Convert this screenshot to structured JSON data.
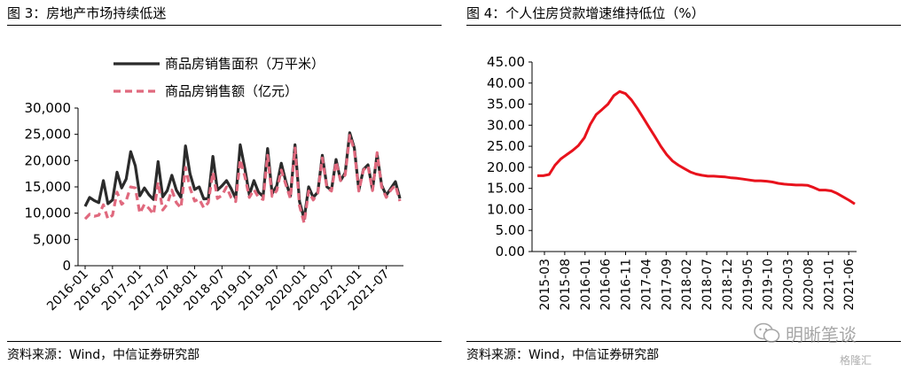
{
  "left": {
    "title": "图 3：房地产市场持续低迷",
    "source": "资料来源：Wind，中信证券研究部"
  },
  "right": {
    "title": "图 4：个人住房贷款增速维持低位（%）",
    "source": "资料来源：Wind，中信证券研究部"
  },
  "watermark": {
    "text": "明晰笔谈",
    "icon": "wechat-icon",
    "sub": "格隆汇"
  },
  "colors": {
    "area": "#2b2b2b",
    "sales": "#e0697e",
    "loan": "#e8121c"
  },
  "chart_data": [
    {
      "type": "line",
      "title": "",
      "xlabel": "",
      "ylabel": "",
      "ylim": [
        0,
        30000
      ],
      "yticks": [
        "0",
        "5,000",
        "10,000",
        "15,000",
        "20,000",
        "25,000",
        "30,000"
      ],
      "xtick_labels": [
        "2016-01",
        "2016-07",
        "2017-01",
        "2017-07",
        "2018-01",
        "2018-07",
        "2019-01",
        "2019-07",
        "2020-01",
        "2020-07",
        "2021-01",
        "2021-07"
      ],
      "legend": [
        "商品房销售面积（万平米）",
        "商品房销售额（亿元）"
      ],
      "legend_position": "top",
      "series": [
        {
          "name": "商品房销售面积（万平米）",
          "style": "solid",
          "values": [
            11300,
            13000,
            12400,
            12000,
            16200,
            11800,
            12500,
            17800,
            14800,
            16500,
            21700,
            19000,
            13300,
            14800,
            13500,
            12600,
            19800,
            13100,
            14300,
            17200,
            14400,
            13000,
            22800,
            17500,
            14500,
            15000,
            12700,
            12800,
            20800,
            14400,
            15200,
            16200,
            14700,
            12800,
            23000,
            18500,
            13500,
            16200,
            14000,
            13200,
            22300,
            13700,
            15200,
            19500,
            16000,
            13200,
            23000,
            12200,
            8900,
            15000,
            13000,
            14000,
            21000,
            15000,
            14400,
            20200,
            16200,
            17700,
            25300,
            22400,
            14400,
            18300,
            19200,
            14500,
            21200,
            15300,
            13400,
            14700,
            16000,
            12800
          ]
        },
        {
          "name": "商品房销售额（亿元）",
          "style": "dashed",
          "values": [
            8900,
            9800,
            9400,
            9600,
            11600,
            8900,
            9600,
            14000,
            11700,
            12400,
            15000,
            14800,
            10000,
            11700,
            10900,
            9800,
            15900,
            10600,
            11700,
            14400,
            12000,
            11000,
            18700,
            14800,
            12300,
            12700,
            11000,
            12000,
            17800,
            12800,
            13400,
            15000,
            13000,
            12200,
            20200,
            17000,
            13000,
            14500,
            13000,
            12600,
            21000,
            13200,
            14300,
            18200,
            15400,
            12800,
            22400,
            11400,
            8100,
            14200,
            12500,
            13800,
            20500,
            14800,
            14200,
            19800,
            16200,
            17300,
            24800,
            22000,
            14200,
            18200,
            19000,
            14300,
            21500,
            15000,
            13000,
            14400,
            15300,
            12300
          ]
        }
      ]
    },
    {
      "type": "line",
      "title": "个人住房贷款增速",
      "xlabel": "",
      "ylabel": "%",
      "ylim": [
        0,
        45
      ],
      "yticks": [
        "0.00",
        "5.00",
        "10.00",
        "15.00",
        "20.00",
        "25.00",
        "30.00",
        "35.00",
        "40.00",
        "45.00"
      ],
      "xtick_labels": [
        "2015-03",
        "2015-08",
        "2016-01",
        "2016-06",
        "2016-11",
        "2017-04",
        "2017-09",
        "2018-02",
        "2018-07",
        "2018-12",
        "2019-05",
        "2019-10",
        "2020-03",
        "2020-08",
        "2021-01",
        "2021-06"
      ],
      "series": [
        {
          "name": "个人住房贷款增速",
          "values": [
            18.0,
            18.0,
            18.3,
            20.5,
            22.0,
            23.0,
            24.0,
            25.2,
            27.0,
            30.2,
            32.5,
            33.7,
            35.0,
            37.0,
            38.0,
            37.5,
            36.0,
            34.0,
            31.8,
            29.5,
            27.3,
            25.0,
            23.0,
            21.5,
            20.5,
            19.7,
            18.9,
            18.4,
            18.1,
            17.9,
            17.9,
            17.8,
            17.7,
            17.5,
            17.4,
            17.2,
            17.0,
            16.8,
            16.8,
            16.7,
            16.5,
            16.2,
            16.0,
            15.9,
            15.8,
            15.8,
            15.7,
            15.2,
            14.6,
            14.6,
            14.4,
            13.8,
            13.0,
            12.2,
            11.3
          ]
        }
      ]
    }
  ]
}
